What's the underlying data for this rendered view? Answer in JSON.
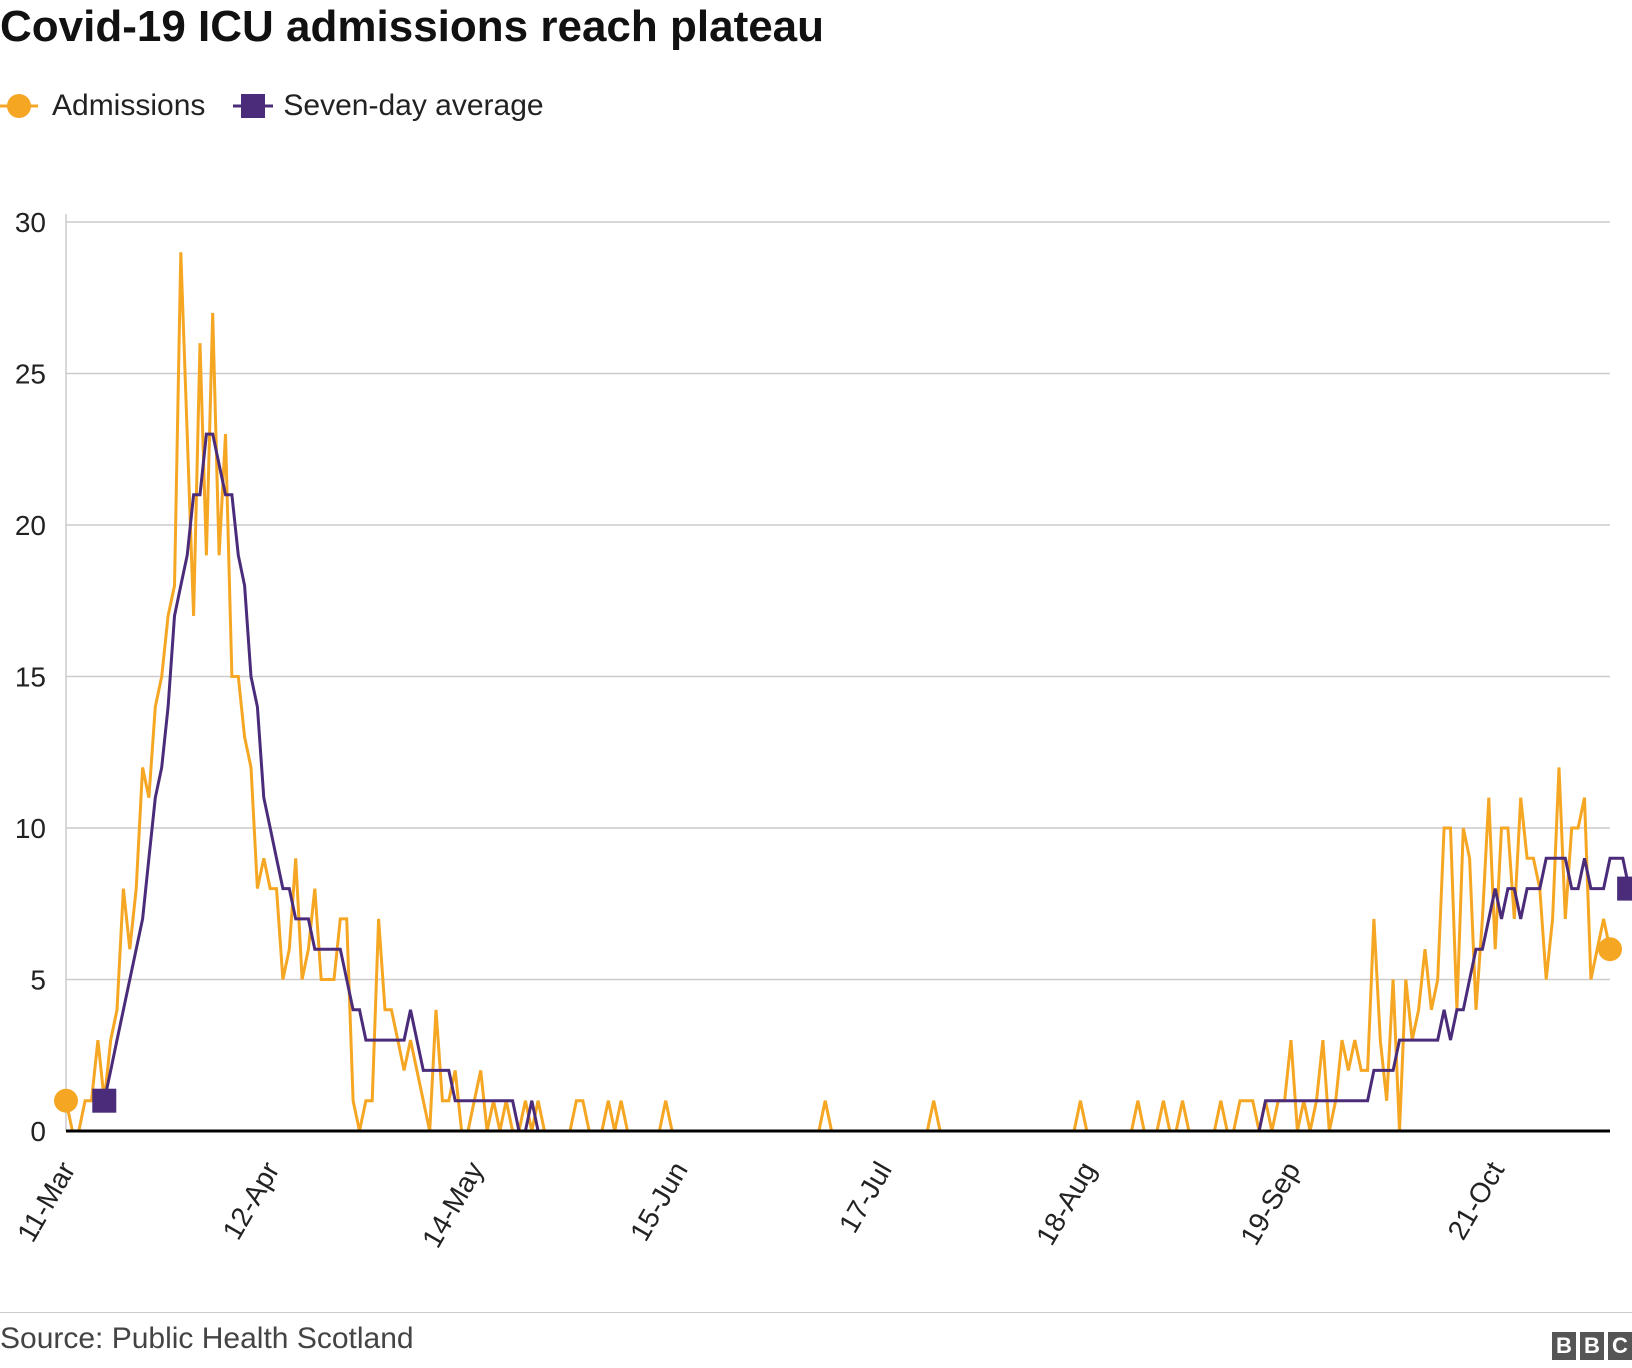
{
  "header": {
    "title": "Covid-19 ICU admissions reach plateau"
  },
  "legend": {
    "admissions_label": "Admissions",
    "average_label": "Seven-day average"
  },
  "footer": {
    "source": "Source: Public Health Scotland",
    "logo_letters": [
      "B",
      "B",
      "C"
    ]
  },
  "colors": {
    "admissions": "#f5a623",
    "average": "#4a2c7a",
    "grid": "#cccccc",
    "baseline": "#000000"
  },
  "chart_data": {
    "type": "line",
    "title": "Covid-19 ICU admissions reach plateau",
    "xlabel": "",
    "ylabel": "",
    "x_start": "11-Mar",
    "ylim": [
      0,
      30
    ],
    "yticks": [
      0,
      5,
      10,
      15,
      20,
      25,
      30
    ],
    "xticks": [
      {
        "label": "11-Mar",
        "index": 0
      },
      {
        "label": "12-Apr",
        "index": 32
      },
      {
        "label": "14-May",
        "index": 64
      },
      {
        "label": "15-Jun",
        "index": 96
      },
      {
        "label": "17-Jul",
        "index": 128
      },
      {
        "label": "18-Aug",
        "index": 160
      },
      {
        "label": "19-Sep",
        "index": 192
      },
      {
        "label": "21-Oct",
        "index": 224
      }
    ],
    "grid": true,
    "legend_position": "top-left",
    "series": [
      {
        "name": "Admissions",
        "marker": "circle",
        "values": [
          1,
          0,
          0,
          1,
          1,
          3,
          1,
          3,
          4,
          8,
          6,
          8,
          12,
          11,
          14,
          15,
          17,
          18,
          29,
          23,
          17,
          26,
          19,
          27,
          19,
          23,
          15,
          15,
          13,
          12,
          8,
          9,
          8,
          8,
          5,
          6,
          9,
          5,
          6,
          8,
          5,
          5,
          5,
          7,
          7,
          1,
          0,
          1,
          1,
          7,
          4,
          4,
          3,
          2,
          3,
          2,
          1,
          0,
          4,
          1,
          1,
          2,
          0,
          0,
          1,
          2,
          0,
          1,
          0,
          1,
          0,
          0,
          1,
          0,
          1,
          0,
          0,
          0,
          0,
          0,
          1,
          1,
          0,
          0,
          0,
          1,
          0,
          1,
          0,
          0,
          0,
          0,
          0,
          0,
          1,
          0,
          0,
          0,
          0,
          0,
          0,
          0,
          0,
          0,
          0,
          0,
          0,
          0,
          0,
          0,
          0,
          0,
          0,
          0,
          0,
          0,
          0,
          0,
          0,
          1,
          0,
          0,
          0,
          0,
          0,
          0,
          0,
          0,
          0,
          0,
          0,
          0,
          0,
          0,
          0,
          0,
          1,
          0,
          0,
          0,
          0,
          0,
          0,
          0,
          0,
          0,
          0,
          0,
          0,
          0,
          0,
          0,
          0,
          0,
          0,
          0,
          0,
          0,
          0,
          1,
          0,
          0,
          0,
          0,
          0,
          0,
          0,
          0,
          1,
          0,
          0,
          0,
          1,
          0,
          0,
          1,
          0,
          0,
          0,
          0,
          0,
          1,
          0,
          0,
          1,
          1,
          1,
          0,
          1,
          0,
          1,
          1,
          3,
          0,
          1,
          0,
          1,
          3,
          0,
          1,
          3,
          2,
          3,
          2,
          2,
          7,
          3,
          1,
          5,
          0,
          5,
          3,
          4,
          6,
          4,
          5,
          10,
          10,
          4,
          10,
          9,
          4,
          7,
          11,
          6,
          10,
          10,
          7,
          11,
          9,
          9,
          8,
          5,
          7,
          12,
          7,
          10,
          10,
          11,
          5,
          6,
          7,
          6
        ],
        "last_value": 6
      },
      {
        "name": "Seven-day average",
        "marker": "square",
        "start_index": 6,
        "values": [
          1,
          2,
          3,
          4,
          5,
          6,
          7,
          9,
          11,
          12,
          14,
          17,
          18,
          19,
          21,
          21,
          23,
          23,
          22,
          21,
          21,
          19,
          18,
          15,
          14,
          11,
          10,
          9,
          8,
          8,
          7,
          7,
          7,
          6,
          6,
          6,
          6,
          6,
          5,
          4,
          4,
          3,
          3,
          3,
          3,
          3,
          3,
          3,
          4,
          3,
          2,
          2,
          2,
          2,
          2,
          1,
          1,
          1,
          1,
          1,
          1,
          1,
          1,
          1,
          1,
          0,
          0,
          1,
          0,
          0,
          0,
          0,
          0,
          0,
          0,
          0,
          0,
          0,
          0,
          0,
          0,
          0,
          0,
          0,
          0,
          0,
          0,
          0,
          0,
          0,
          0,
          0,
          0,
          0,
          0,
          0,
          0,
          0,
          0,
          0,
          0,
          0,
          0,
          0,
          0,
          0,
          0,
          0,
          0,
          0,
          0,
          0,
          0,
          0,
          0,
          0,
          0,
          0,
          0,
          0,
          0,
          0,
          0,
          0,
          0,
          0,
          0,
          0,
          0,
          0,
          0,
          0,
          0,
          0,
          0,
          0,
          0,
          0,
          0,
          0,
          0,
          0,
          0,
          0,
          0,
          0,
          0,
          0,
          0,
          0,
          0,
          0,
          0,
          0,
          0,
          0,
          0,
          0,
          0,
          0,
          0,
          0,
          0,
          0,
          0,
          0,
          0,
          0,
          0,
          0,
          0,
          0,
          0,
          0,
          0,
          0,
          0,
          0,
          0,
          0,
          0,
          0,
          1,
          1,
          1,
          1,
          1,
          1,
          1,
          1,
          1,
          1,
          1,
          1,
          1,
          1,
          1,
          1,
          1,
          2,
          2,
          2,
          2,
          3,
          3,
          3,
          3,
          3,
          3,
          3,
          4,
          3,
          4,
          4,
          5,
          6,
          6,
          7,
          8,
          7,
          8,
          8,
          7,
          8,
          8,
          8,
          9,
          9,
          9,
          9,
          8,
          8,
          9,
          8,
          8,
          8,
          9,
          9,
          9,
          8
        ],
        "last_value": 8
      }
    ]
  }
}
